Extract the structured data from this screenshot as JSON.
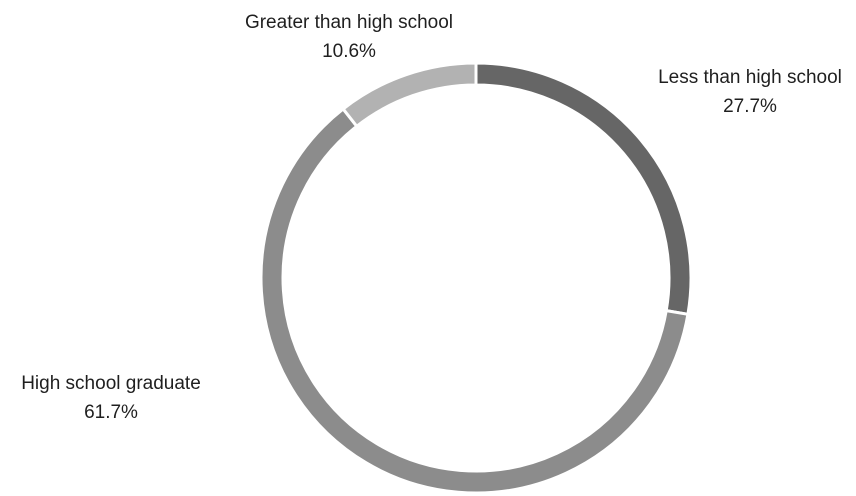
{
  "chart_data": {
    "type": "pie",
    "categories": [
      "Less than high school",
      "High school graduate",
      "Greater than high school"
    ],
    "values": [
      27.7,
      61.7,
      10.6
    ],
    "value_labels": [
      "27.7%",
      "61.7%",
      "10.6%"
    ],
    "unit": "%",
    "donut": true,
    "start_angle_deg": 0,
    "direction": "clockwise",
    "colors": [
      "#666666",
      "#8c8c8c",
      "#b2b2b2"
    ],
    "legend": "none",
    "title": ""
  }
}
